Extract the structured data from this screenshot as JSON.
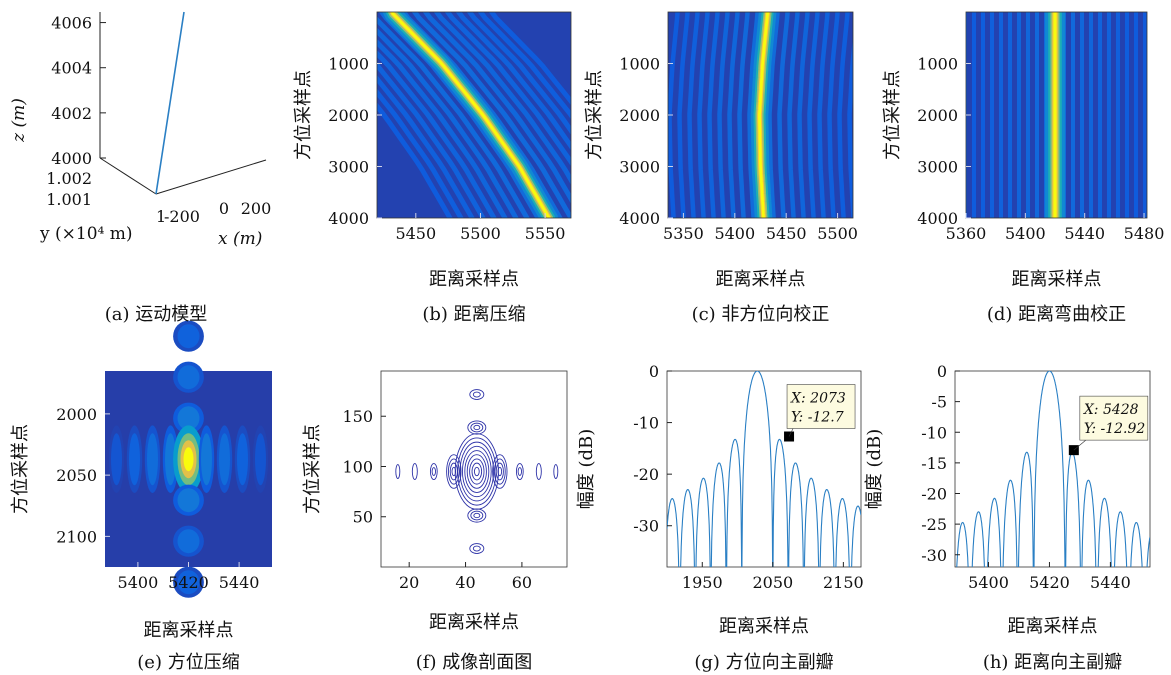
{
  "colors": {
    "accent_line": "#2a7fc4",
    "contour": "#2e33a8",
    "marker": "#000000",
    "datatip_bg": "#fdfbe0",
    "colormap": [
      "#352a87",
      "#0f5cdd",
      "#1481d6",
      "#06a4ca",
      "#2eb7a4",
      "#87bf77",
      "#d1bb59",
      "#fec832",
      "#f9fb0e"
    ]
  },
  "chart_data": [
    {
      "panel": "a",
      "type": "line3d",
      "caption": "(a) 运动模型",
      "zlabel": "z (m)",
      "ylabel": "y (×10⁴ m)",
      "xlabel": "x (m)",
      "zticks": [
        "4000",
        "4002",
        "4004",
        "4006"
      ],
      "zrange": [
        4000,
        4007
      ],
      "yticks": [
        "1.002",
        "1.001",
        "1"
      ],
      "xticks": [
        "-200",
        "0",
        "200"
      ],
      "trajectory_z": [
        4000,
        4002,
        4004,
        4006,
        4007
      ],
      "trajectory_x": [
        0,
        8,
        16,
        24,
        28
      ]
    },
    {
      "panel": "b",
      "type": "heatmap",
      "caption": "(b) 距离压缩",
      "xlabel": "距离采样点",
      "ylabel": "方位采样点",
      "xticks": [
        "5450",
        "5500",
        "5550"
      ],
      "xtick_values": [
        5450,
        5500,
        5550
      ],
      "xlim": [
        5420,
        5570
      ],
      "yticks": [
        "1000",
        "2000",
        "3000",
        "4000"
      ],
      "ytick_values": [
        1000,
        2000,
        3000,
        4000
      ],
      "ylim": [
        0,
        4000
      ],
      "ridge": [
        [
          5431,
          0
        ],
        [
          5470,
          1000
        ],
        [
          5502,
          2000
        ],
        [
          5530,
          3000
        ],
        [
          5553,
          4000
        ]
      ]
    },
    {
      "panel": "c",
      "type": "heatmap",
      "caption": "(c) 非方位向校正",
      "xlabel": "距离采样点",
      "ylabel": "方位采样点",
      "xticks": [
        "5350",
        "5400",
        "5450",
        "5500"
      ],
      "xtick_values": [
        5350,
        5400,
        5450,
        5500
      ],
      "xlim": [
        5335,
        5515
      ],
      "yticks": [
        "1000",
        "2000",
        "3000",
        "4000"
      ],
      "ytick_values": [
        1000,
        2000,
        3000,
        4000
      ],
      "ylim": [
        0,
        4000
      ],
      "ridge": [
        [
          5432,
          0
        ],
        [
          5427,
          1000
        ],
        [
          5424,
          2000
        ],
        [
          5425,
          3000
        ],
        [
          5428,
          4000
        ]
      ]
    },
    {
      "panel": "d",
      "type": "heatmap",
      "caption": "(d) 距离弯曲校正",
      "xlabel": "距离采样点",
      "ylabel": "方位采样点",
      "xticks": [
        "5360",
        "5400",
        "5440",
        "5480"
      ],
      "xtick_values": [
        5360,
        5400,
        5440,
        5480
      ],
      "xlim": [
        5360,
        5482
      ],
      "yticks": [
        "1000",
        "2000",
        "3000",
        "4000"
      ],
      "ytick_values": [
        1000,
        2000,
        3000,
        4000
      ],
      "ylim": [
        0,
        4000
      ],
      "ridge": [
        [
          5420,
          0
        ],
        [
          5420,
          4000
        ]
      ]
    },
    {
      "panel": "e",
      "type": "heatmap",
      "caption": "(e) 方位压缩",
      "xlabel": "距离采样点",
      "ylabel": "方位采样点",
      "xticks": [
        "5400",
        "5420",
        "5440"
      ],
      "xtick_values": [
        5400,
        5420,
        5440
      ],
      "xlim": [
        5387,
        5453
      ],
      "yticks": [
        "2000",
        "2050",
        "2100"
      ],
      "ytick_values": [
        2000,
        2050,
        2100
      ],
      "ylim": [
        1965,
        2125
      ],
      "peak": [
        5420,
        2037
      ]
    },
    {
      "panel": "f",
      "type": "contour",
      "caption": "(f) 成像剖面图",
      "xticks": [
        "20",
        "40",
        "60"
      ],
      "xtick_values": [
        20,
        40,
        60
      ],
      "xlim": [
        10,
        76
      ],
      "yticks": [
        "50",
        "100",
        "150"
      ],
      "ytick_values": [
        50,
        100,
        150
      ],
      "ylim": [
        0,
        195
      ],
      "peak": [
        44,
        95
      ],
      "xlabel": "距离采样点",
      "ylabel": "方位采样点"
    },
    {
      "panel": "g",
      "type": "line",
      "caption": "(g) 方位向主副瓣",
      "xlabel": "距离采样点",
      "ylabel": "幅度 (dB)",
      "xticks": [
        "1950",
        "2050",
        "2150"
      ],
      "xtick_values": [
        1950,
        2050,
        2150
      ],
      "xlim": [
        1900,
        2175
      ],
      "yticks": [
        "0",
        "-10",
        "-20",
        "-30"
      ],
      "ytick_values": [
        0,
        -10,
        -20,
        -30
      ],
      "ylim": [
        -38,
        0
      ],
      "mainlobe_center": 2028,
      "lobe_spacing": 22,
      "datatip": {
        "x": 2073,
        "y": -12.7,
        "x_text": "X: 2073",
        "y_text": "Y: -12.7"
      }
    },
    {
      "panel": "h",
      "type": "line",
      "caption": "(h) 距离向主副瓣",
      "xlabel": "距离采样点",
      "ylabel": "幅度 (dB)",
      "xticks": [
        "5400",
        "5420",
        "5440"
      ],
      "xtick_values": [
        5400,
        5420,
        5440
      ],
      "xlim": [
        5389,
        5453
      ],
      "yticks": [
        "0",
        "-5",
        "-10",
        "-15",
        "-20",
        "-25",
        "-30"
      ],
      "ytick_values": [
        0,
        -5,
        -10,
        -15,
        -20,
        -25,
        -30
      ],
      "ylim": [
        -32,
        0
      ],
      "mainlobe_center": 5420,
      "lobe_spacing": 5.2,
      "datatip": {
        "x": 5428,
        "y": -12.92,
        "x_text": "X: 5428",
        "y_text": "Y: -12.92"
      }
    }
  ]
}
